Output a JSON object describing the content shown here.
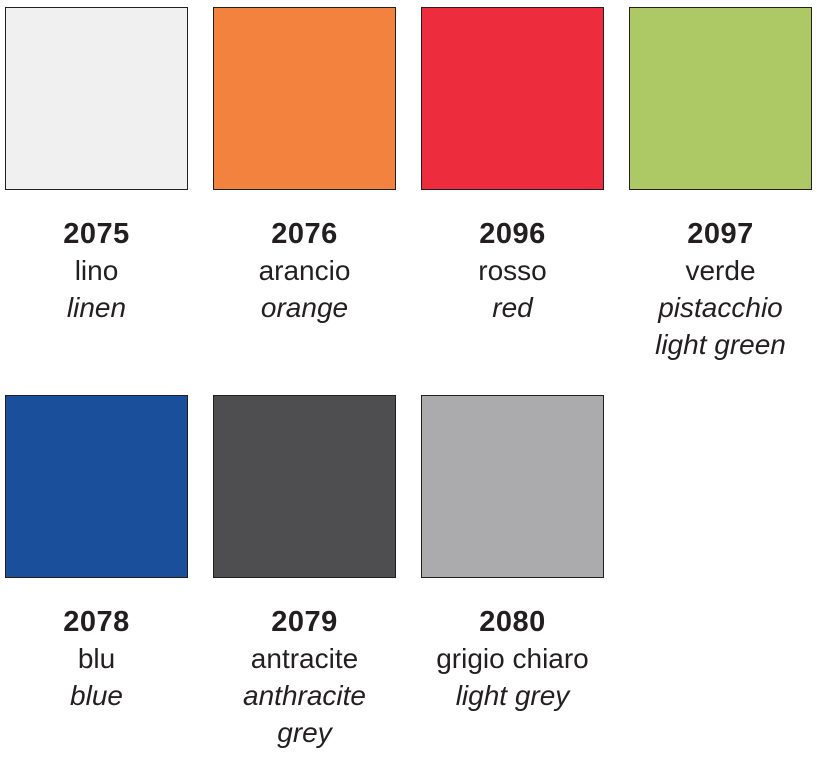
{
  "page": {
    "background_color": "#ffffff",
    "text_color": "#231f20",
    "swatch_border_color": "#231f20"
  },
  "palette": {
    "cells": [
      {
        "code": "2075",
        "name_it": "lino",
        "name_en": [
          "linen"
        ],
        "color": "#f0f0f1"
      },
      {
        "code": "2076",
        "name_it": "arancio",
        "name_en": [
          "orange"
        ],
        "color": "#f2823d"
      },
      {
        "code": "2096",
        "name_it": "rosso",
        "name_en": [
          "red"
        ],
        "color": "#ed2d3d"
      },
      {
        "code": "2097",
        "name_it": "verde",
        "name_en": [
          "pistacchio",
          "light green"
        ],
        "color": "#adc965"
      },
      {
        "code": "2078",
        "name_it": "blu",
        "name_en": [
          "blue"
        ],
        "color": "#1a4f9c"
      },
      {
        "code": "2079",
        "name_it": "antracite",
        "name_en": [
          "anthracite",
          "grey"
        ],
        "color": "#4e4e50"
      },
      {
        "code": "2080",
        "name_it": "grigio chiaro",
        "name_en": [
          "light grey"
        ],
        "color": "#ababad"
      }
    ]
  }
}
